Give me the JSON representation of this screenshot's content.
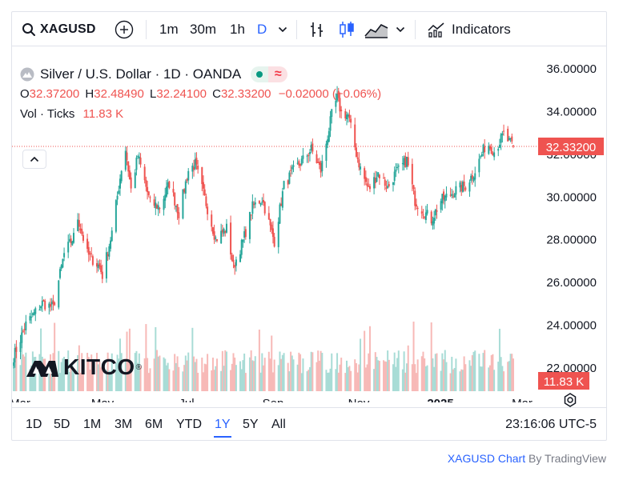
{
  "toolbar": {
    "symbol": "XAGUSD",
    "intervals": [
      "1m",
      "30m",
      "1h",
      "D"
    ],
    "active_interval": "D",
    "indicators_label": "Indicators"
  },
  "legend": {
    "title": "Silver / U.S. Dollar · 1D · OANDA",
    "open_label": "O",
    "open": "32.37200",
    "high_label": "H",
    "high": "32.48490",
    "low_label": "L",
    "low": "32.24100",
    "close_label": "C",
    "close": "32.33200",
    "change": "−0.02000 (−0.06%)",
    "volume_label": "Vol · Ticks",
    "volume": "11.83 K"
  },
  "badges": {
    "status_icon": "green-dot",
    "replay_icon": "approx-symbol",
    "replay_glyph": "≈"
  },
  "logo": {
    "text": "KITCO",
    "mark": "®"
  },
  "price_axis": {
    "labels": [
      "36.00000",
      "34.00000",
      "32.00000",
      "30.00000",
      "28.00000",
      "26.00000",
      "24.00000",
      "22.00000"
    ],
    "last_price": "32.33200",
    "last_volume": "11.83 K"
  },
  "time_axis": {
    "labels": [
      "Mar",
      "May",
      "Jul",
      "Sep",
      "Nov",
      "2025",
      "Mar"
    ]
  },
  "ranges": [
    "1D",
    "5D",
    "1M",
    "3M",
    "6M",
    "YTD",
    "1Y",
    "5Y",
    "All"
  ],
  "active_range": "1Y",
  "clock": "23:16:06 UTC-5",
  "attribution": {
    "symbol_text": "XAGUSD Chart",
    "by_text": "By TradingView"
  },
  "colors": {
    "up": "#26a69a",
    "down": "#ef5350",
    "accent": "#2962ff",
    "vol_up": "#a8dcd6",
    "vol_down": "#f7b9b7"
  },
  "chart_data": {
    "type": "candlestick",
    "title": "Silver / U.S. Dollar · 1D · OANDA",
    "x_ticks": [
      "Mar",
      "May",
      "Jul",
      "Sep",
      "Nov",
      "2025",
      "Mar"
    ],
    "y_ticks": [
      36,
      34,
      32,
      30,
      28,
      26,
      24,
      22
    ],
    "ylim": [
      21,
      36.8
    ],
    "last_close": 32.332,
    "anchors_date_close": [
      [
        "Feb 28",
        22.5
      ],
      [
        "Mar 8",
        24.0
      ],
      [
        "Mar 20",
        25.0
      ],
      [
        "Mar 28",
        24.8
      ],
      [
        "Apr 5",
        27.3
      ],
      [
        "Apr 12",
        28.1
      ],
      [
        "Apr 15",
        29.0
      ],
      [
        "Apr 22",
        27.3
      ],
      [
        "May 1",
        26.7
      ],
      [
        "May 3",
        26.3
      ],
      [
        "May 10",
        28.3
      ],
      [
        "May 17",
        31.3
      ],
      [
        "May 20",
        32.2
      ],
      [
        "May 24",
        30.3
      ],
      [
        "May 29",
        31.9
      ],
      [
        "Jun 7",
        29.7
      ],
      [
        "Jun 14",
        29.5
      ],
      [
        "Jun 21",
        30.6
      ],
      [
        "Jun 28",
        29.2
      ],
      [
        "Jul 5",
        31.2
      ],
      [
        "Jul 10",
        31.5
      ],
      [
        "Jul 17",
        29.9
      ],
      [
        "Jul 25",
        28.0
      ],
      [
        "Aug 2",
        28.5
      ],
      [
        "Aug 7",
        26.7
      ],
      [
        "Aug 14",
        27.9
      ],
      [
        "Aug 21",
        29.5
      ],
      [
        "Aug 28",
        29.9
      ],
      [
        "Sep 4",
        28.3
      ],
      [
        "Sep 6",
        27.9
      ],
      [
        "Sep 13",
        30.5
      ],
      [
        "Sep 20",
        31.2
      ],
      [
        "Sep 27",
        31.7
      ],
      [
        "Oct 3",
        32.2
      ],
      [
        "Oct 10",
        31.2
      ],
      [
        "Oct 18",
        33.8
      ],
      [
        "Oct 22",
        34.6
      ],
      [
        "Oct 25",
        33.9
      ],
      [
        "Oct 30",
        33.8
      ],
      [
        "Nov 5",
        32.0
      ],
      [
        "Nov 8",
        31.3
      ],
      [
        "Nov 14",
        30.3
      ],
      [
        "Nov 21",
        31.1
      ],
      [
        "Nov 28",
        30.4
      ],
      [
        "Dec 3",
        31.0
      ],
      [
        "Dec 6",
        31.2
      ],
      [
        "Dec 12",
        31.7
      ],
      [
        "Dec 18",
        29.8
      ],
      [
        "Dec 23",
        29.4
      ],
      [
        "Dec 30",
        28.9
      ],
      [
        "Jan 6",
        29.8
      ],
      [
        "Jan 13",
        30.1
      ],
      [
        "Jan 17",
        30.3
      ],
      [
        "Jan 24",
        30.5
      ],
      [
        "Jan 31",
        31.2
      ],
      [
        "Feb 7",
        32.3
      ],
      [
        "Feb 10",
        32.4
      ],
      [
        "Feb 14",
        32.1
      ],
      [
        "Feb 21",
        32.9
      ],
      [
        "Feb 24",
        32.6
      ],
      [
        "Feb 28",
        32.33
      ]
    ]
  }
}
